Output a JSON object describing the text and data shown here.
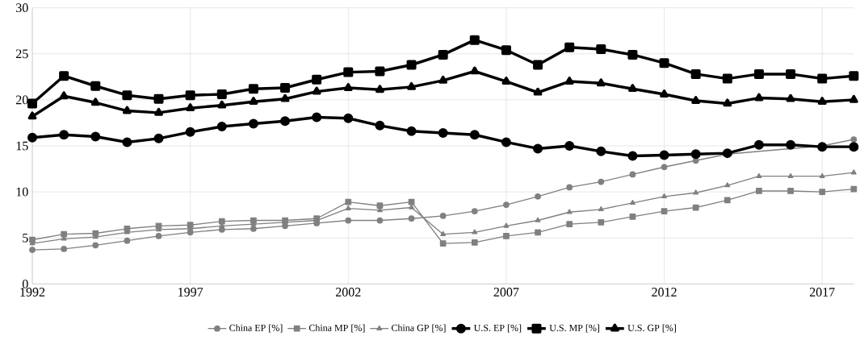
{
  "chart_data": {
    "type": "line",
    "x": [
      1992,
      1993,
      1994,
      1995,
      1996,
      1997,
      1998,
      1999,
      2000,
      2001,
      2002,
      2003,
      2004,
      2005,
      2006,
      2007,
      2008,
      2009,
      2010,
      2011,
      2012,
      2013,
      2014,
      2015,
      2016,
      2017,
      2018
    ],
    "series": [
      {
        "name": "China EP [%]",
        "color": "#808080",
        "marker": "circle",
        "values": [
          3.7,
          3.8,
          4.2,
          4.7,
          5.2,
          5.6,
          5.9,
          6.0,
          6.3,
          6.6,
          6.9,
          6.9,
          7.1,
          7.4,
          7.9,
          8.6,
          9.5,
          10.5,
          11.1,
          11.9,
          12.7,
          13.4,
          14.1,
          null,
          null,
          15.0,
          15.7
        ]
      },
      {
        "name": "China MP [%]",
        "color": "#808080",
        "marker": "square",
        "values": [
          4.8,
          5.4,
          5.5,
          6.0,
          6.3,
          6.4,
          6.8,
          6.9,
          6.9,
          7.1,
          8.9,
          8.5,
          8.9,
          4.4,
          4.5,
          5.2,
          5.6,
          6.5,
          6.7,
          7.3,
          7.9,
          8.3,
          9.1,
          10.1,
          10.1,
          10.0,
          10.3
        ]
      },
      {
        "name": "China GP [%]",
        "color": "#808080",
        "marker": "triangle",
        "values": [
          4.4,
          4.9,
          5.1,
          5.6,
          5.9,
          6.0,
          6.3,
          6.5,
          6.7,
          6.9,
          8.2,
          8.0,
          8.3,
          5.4,
          5.6,
          6.3,
          6.9,
          7.8,
          8.1,
          8.8,
          9.5,
          9.9,
          10.7,
          11.7,
          11.7,
          11.7,
          12.1
        ]
      },
      {
        "name": "U.S. EP [%]",
        "color": "#000000",
        "marker": "circle",
        "values": [
          15.9,
          16.2,
          16.0,
          15.4,
          15.8,
          16.5,
          17.1,
          17.4,
          17.7,
          18.1,
          18.0,
          17.2,
          16.6,
          16.4,
          16.2,
          15.4,
          14.7,
          15.0,
          14.4,
          13.9,
          14.0,
          14.1,
          14.2,
          15.1,
          15.1,
          14.9,
          14.9
        ]
      },
      {
        "name": "U.S. MP [%]",
        "color": "#000000",
        "marker": "square",
        "values": [
          19.6,
          22.6,
          21.5,
          20.5,
          20.1,
          20.5,
          20.6,
          21.2,
          21.3,
          22.2,
          23.0,
          23.1,
          23.8,
          24.9,
          26.5,
          25.4,
          23.8,
          25.7,
          25.5,
          24.9,
          24.0,
          22.8,
          22.3,
          22.8,
          22.8,
          22.3,
          22.6
        ]
      },
      {
        "name": "U.S. GP [%]",
        "color": "#000000",
        "marker": "triangle",
        "values": [
          18.2,
          20.4,
          19.7,
          18.8,
          18.6,
          19.1,
          19.4,
          19.8,
          20.1,
          20.9,
          21.3,
          21.1,
          21.4,
          22.1,
          23.1,
          22.0,
          20.8,
          22.0,
          21.8,
          21.2,
          20.6,
          19.9,
          19.6,
          20.2,
          20.1,
          19.8,
          20.0
        ]
      }
    ],
    "xlim": [
      1992,
      2018
    ],
    "xticks": [
      1992,
      1997,
      2002,
      2007,
      2012,
      2017
    ],
    "ylim": [
      0,
      30
    ],
    "yticks": [
      0,
      5,
      10,
      15,
      20,
      25,
      30
    ],
    "grid": true,
    "legend": "bottom",
    "line_style": "solid"
  }
}
